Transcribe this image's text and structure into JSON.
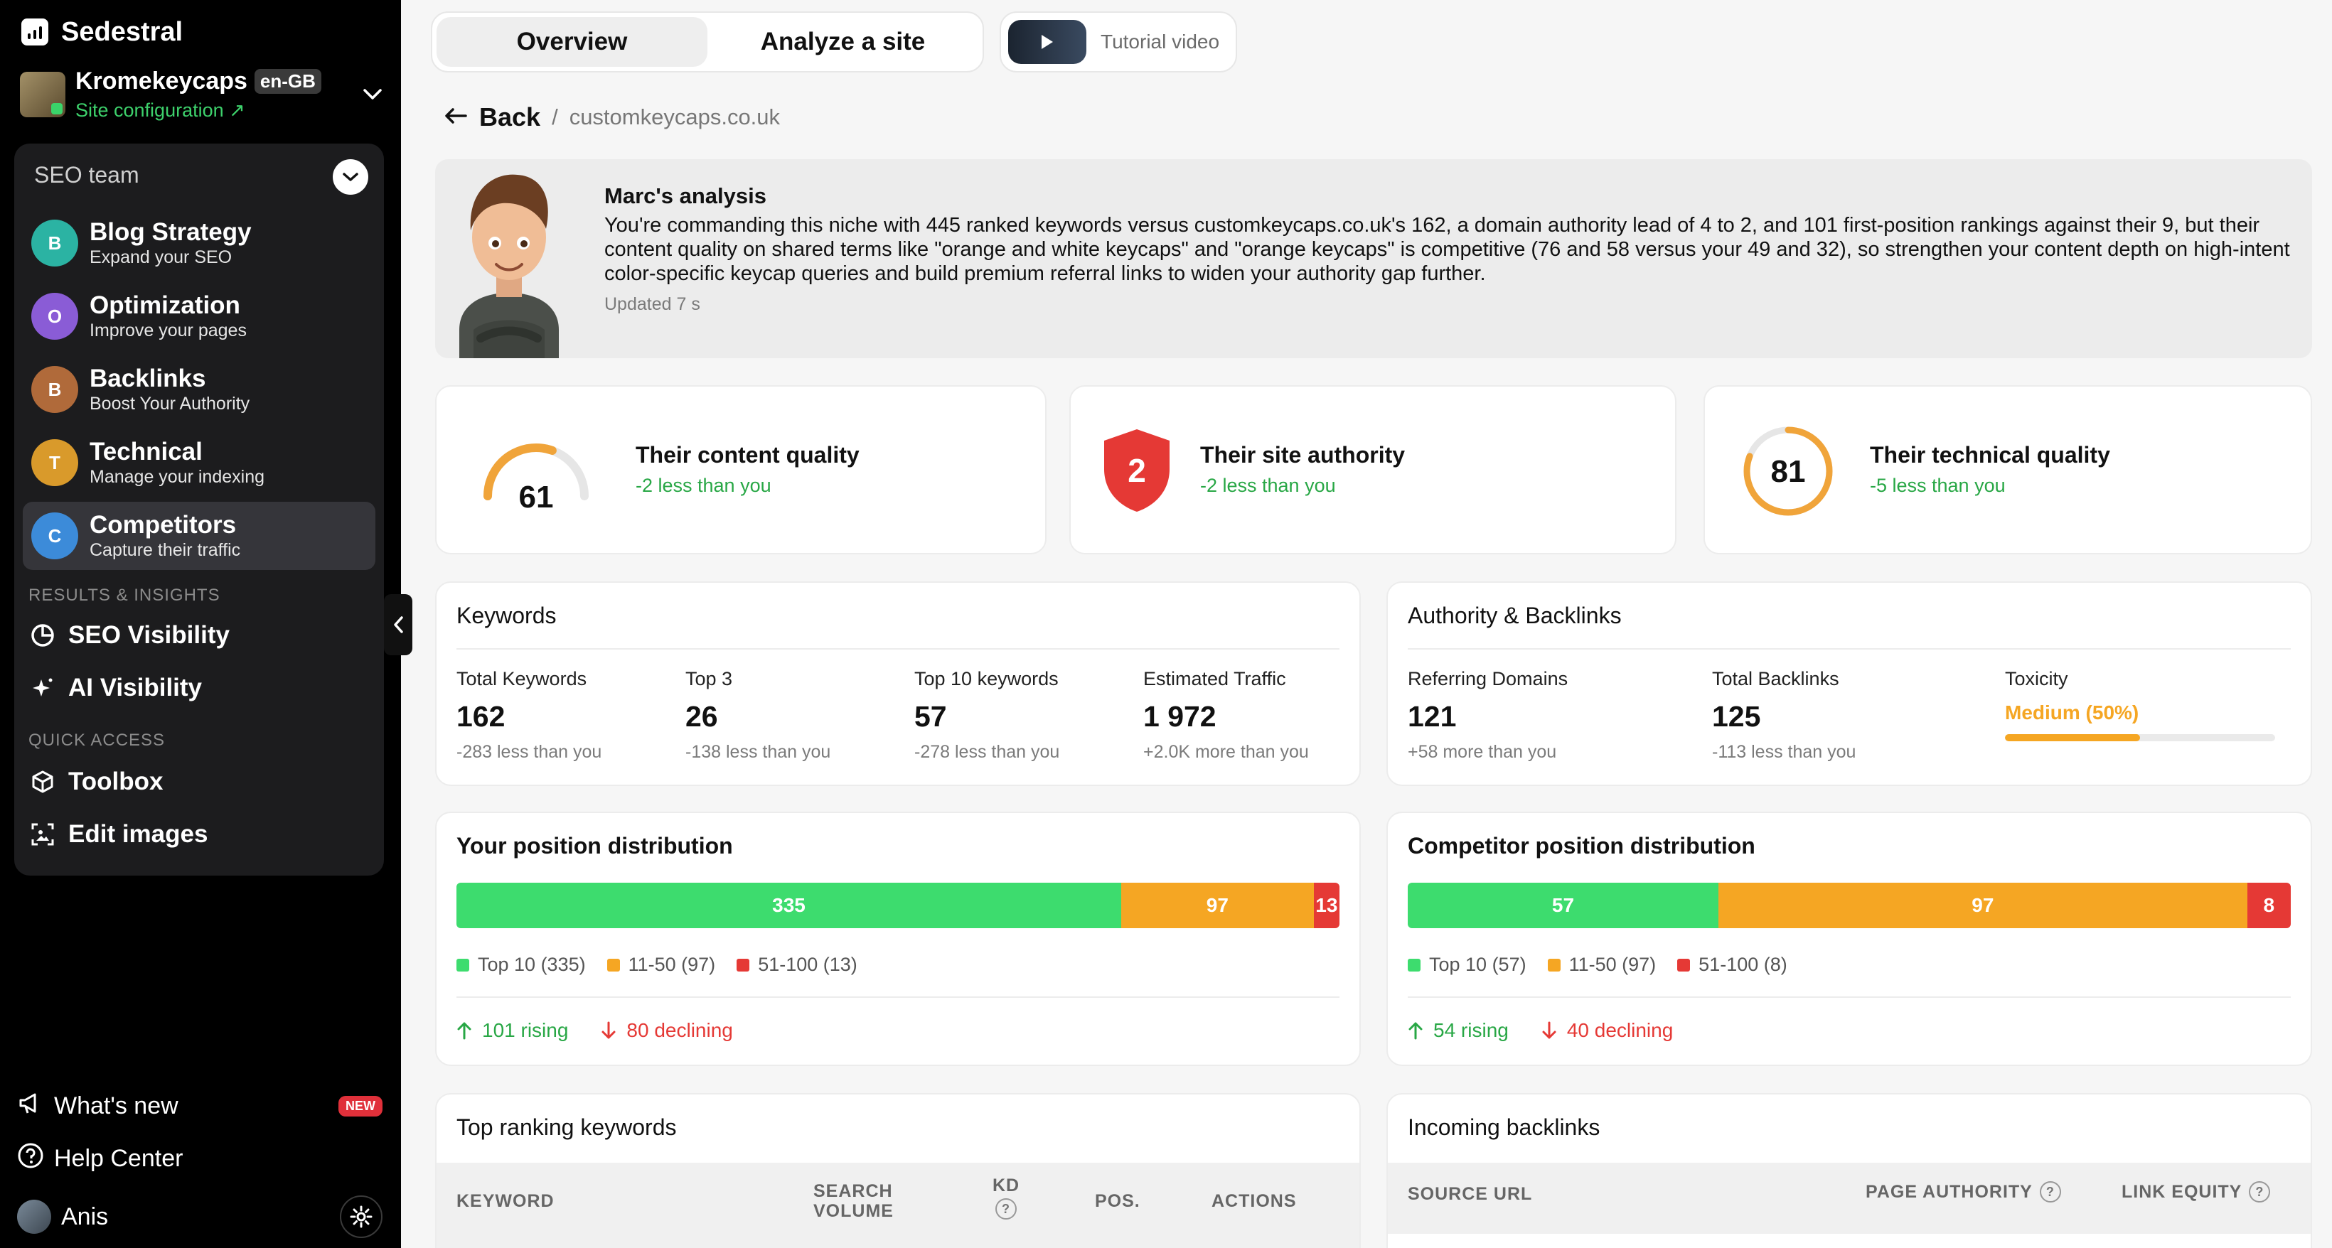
{
  "brand": {
    "name": "Sedestral"
  },
  "site": {
    "name": "Kromekeycaps",
    "lang": "en-GB",
    "config_label": "Site configuration ↗"
  },
  "team": {
    "header": "SEO team",
    "agents": [
      {
        "name": "Blog Strategy",
        "subtitle": "Expand your SEO",
        "color": "#2bb3a3"
      },
      {
        "name": "Optimization",
        "subtitle": "Improve your pages",
        "color": "#8a5cd6"
      },
      {
        "name": "Backlinks",
        "subtitle": "Boost Your Authority",
        "color": "#b06a3a"
      },
      {
        "name": "Technical",
        "subtitle": "Manage your indexing",
        "color": "#d99a2b"
      },
      {
        "name": "Competitors",
        "subtitle": "Capture their traffic",
        "color": "#3c8bd9"
      }
    ]
  },
  "sections": {
    "results": "RESULTS & INSIGHTS",
    "quick": "QUICK ACCESS"
  },
  "nav": {
    "seo_visibility": "SEO Visibility",
    "ai_visibility": "AI Visibility",
    "toolbox": "Toolbox",
    "edit_images": "Edit images"
  },
  "bottom": {
    "whats_new": "What's new",
    "new_badge": "NEW",
    "help": "Help Center",
    "user": "Anis"
  },
  "tabs": {
    "overview": "Overview",
    "analyze": "Analyze a site",
    "tutorial": "Tutorial video"
  },
  "breadcrumb": {
    "back": "Back",
    "separator": "/",
    "domain": "customkeycaps.co.uk"
  },
  "analysis": {
    "title": "Marc's analysis",
    "body": "You're commanding this niche with 445 ranked keywords versus customkeycaps.co.uk's 162, a domain authority lead of 4 to 2, and 101 first-position rankings against their 9, but their content quality on shared terms like \"orange and white keycaps\" and \"orange keycaps\" is competitive (76 and 58 versus your 49 and 32), so strengthen your content depth on high-intent color-specific keycap queries and build premium referral links to widen your authority gap further.",
    "updated": "Updated 7 s"
  },
  "quality": [
    {
      "value": "61",
      "title": "Their content quality",
      "sub": "-2 less than you",
      "level": 0.61,
      "color": "#f0a43a"
    },
    {
      "value": "2",
      "title": "Their site authority",
      "sub": "-2 less than you",
      "color": "#e53935"
    },
    {
      "value": "81",
      "title": "Their technical quality",
      "sub": "-5 less than you",
      "level": 0.81,
      "color": "#f0a43a"
    }
  ],
  "keywords": {
    "title": "Keywords",
    "metrics": [
      {
        "label": "Total Keywords",
        "value": "162",
        "delta": "-283 less than you"
      },
      {
        "label": "Top 3",
        "value": "26",
        "delta": "-138 less than you"
      },
      {
        "label": "Top 10 keywords",
        "value": "57",
        "delta": "-278 less than you"
      },
      {
        "label": "Estimated Traffic",
        "value": "1 972",
        "delta": "+2.0K more than you"
      }
    ]
  },
  "authority": {
    "title": "Authority & Backlinks",
    "metrics": [
      {
        "label": "Referring Domains",
        "value": "121",
        "delta": "+58 more than you"
      },
      {
        "label": "Total Backlinks",
        "value": "125",
        "delta": "-113 less than you"
      }
    ],
    "toxicity": {
      "label": "Toxicity",
      "value": "Medium (50%)",
      "level": 0.5
    }
  },
  "your_dist": {
    "title": "Your position distribution",
    "segments": [
      {
        "label": "335",
        "value": 335,
        "color": "#3ddc6e"
      },
      {
        "label": "97",
        "value": 97,
        "color": "#f5a623"
      },
      {
        "label": "13",
        "value": 13,
        "color": "#e53935"
      }
    ],
    "legend": [
      "Top 10 (335)",
      "11-50 (97)",
      "51-100 (13)"
    ],
    "rising": "101 rising",
    "declining": "80 declining"
  },
  "comp_dist": {
    "title": "Competitor position distribution",
    "segments": [
      {
        "label": "57",
        "value": 57,
        "color": "#3ddc6e"
      },
      {
        "label": "97",
        "value": 97,
        "color": "#f5a623"
      },
      {
        "label": "8",
        "value": 8,
        "color": "#e53935"
      }
    ],
    "legend": [
      "Top 10 (57)",
      "11-50 (97)",
      "51-100 (8)"
    ],
    "rising": "54 rising",
    "declining": "40 declining"
  },
  "top_keywords": {
    "title": "Top ranking keywords",
    "columns": {
      "keyword": "KEYWORD",
      "volume_1": "SEARCH",
      "volume_2": "VOLUME",
      "kd": "KD",
      "pos": "POS.",
      "actions": "ACTIONS"
    }
  },
  "backlinks": {
    "title": "Incoming backlinks",
    "columns": {
      "source": "SOURCE URL",
      "authority": "PAGE AUTHORITY",
      "equity": "LINK EQUITY"
    }
  },
  "colors": {
    "green": "#28a745",
    "red": "#e53935",
    "orange": "#f5a623"
  }
}
